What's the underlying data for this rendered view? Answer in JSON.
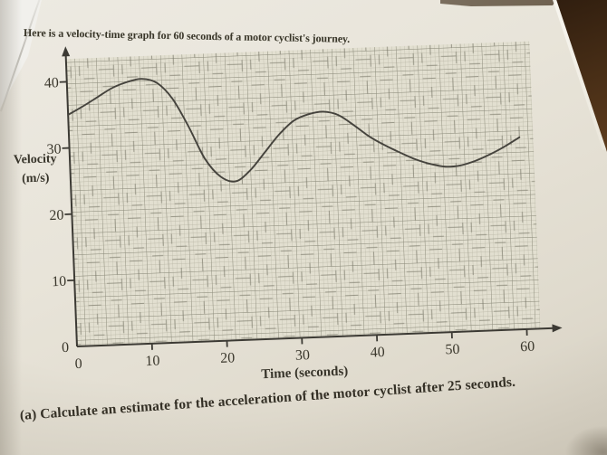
{
  "page": {
    "intro_text": "Here is a velocity-time graph for 60 seconds of a motor cyclist's journey.",
    "question_text": "(a)  Calculate an estimate for the acceleration of the motor cyclist after 25 seconds."
  },
  "chart_data": {
    "type": "line",
    "title": "",
    "xlabel": "Time (seconds)",
    "ylabel": "Velocity (m/s)",
    "ylabel_lines": [
      "Velocity",
      "(m/s)"
    ],
    "xlim": [
      0,
      63
    ],
    "ylim": [
      0,
      43
    ],
    "x_ticks": [
      0,
      10,
      20,
      30,
      40,
      50,
      60
    ],
    "y_ticks": [
      0,
      10,
      20,
      30,
      40
    ],
    "x_tick_labels": [
      "0",
      "10",
      "20",
      "30",
      "40",
      "50",
      "60"
    ],
    "y_tick_labels": [
      "0",
      "10",
      "20",
      "30",
      "40"
    ],
    "grid": "fine graph paper, minor squares ~0.57 s x 0.65 m/s, bold line every 5 squares",
    "legend": "none",
    "series": [
      {
        "name": "velocity of motor cyclist",
        "points": [
          [
            0,
            35
          ],
          [
            2,
            36.2
          ],
          [
            4,
            37.5
          ],
          [
            6,
            38.8
          ],
          [
            8,
            39.6
          ],
          [
            10,
            40
          ],
          [
            12,
            39.3
          ],
          [
            14,
            36.8
          ],
          [
            16,
            32.5
          ],
          [
            18,
            27.6
          ],
          [
            20,
            24.8
          ],
          [
            22,
            24
          ],
          [
            24,
            25.6
          ],
          [
            26,
            28.2
          ],
          [
            28,
            30.8
          ],
          [
            30,
            32.8
          ],
          [
            32,
            33.7
          ],
          [
            34,
            34
          ],
          [
            36,
            33.4
          ],
          [
            38,
            31.8
          ],
          [
            40,
            30
          ],
          [
            42,
            28.6
          ],
          [
            44,
            27.4
          ],
          [
            46,
            26.3
          ],
          [
            48,
            25.5
          ],
          [
            50,
            25
          ],
          [
            52,
            25.1
          ],
          [
            54,
            25.7
          ],
          [
            56,
            26.6
          ],
          [
            58,
            27.7
          ],
          [
            60,
            29
          ]
        ],
        "key_points": {
          "start": [
            0,
            35
          ],
          "first_peak": [
            10,
            40
          ],
          "first_minimum": [
            21,
            24
          ],
          "second_peak": [
            33,
            34
          ],
          "second_minimum": [
            50,
            25
          ],
          "end": [
            60,
            29
          ]
        }
      }
    ]
  },
  "colors": {
    "paper": "#e7e3d8",
    "grid_paper": "#e2dfd0",
    "grid_minor_line": "#b4b1a0",
    "grid_major_line": "#8e8d7d",
    "axis": "#3c3a34",
    "curve": "#45433d",
    "text": "#363329",
    "desk_dark": "#2d1c0e",
    "desk_light": "#b08347"
  }
}
